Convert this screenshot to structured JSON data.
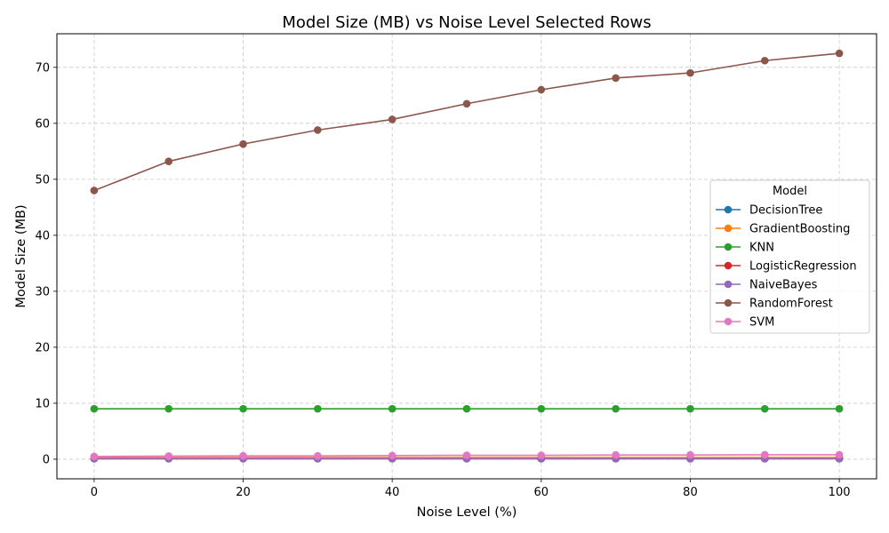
{
  "chart_data": {
    "type": "line",
    "title": "Model Size (MB) vs Noise Level Selected Rows",
    "xlabel": "Noise Level (%)",
    "ylabel": "Model Size (MB)",
    "xlim": [
      -5,
      105
    ],
    "ylim": [
      -3.5,
      76
    ],
    "xticks": [
      0,
      20,
      40,
      60,
      80,
      100
    ],
    "yticks": [
      0,
      10,
      20,
      30,
      40,
      50,
      60,
      70
    ],
    "grid": true,
    "legend_title": "Model",
    "legend_position": "center-right",
    "x": [
      0,
      10,
      20,
      30,
      40,
      50,
      60,
      70,
      80,
      90,
      100
    ],
    "series": [
      {
        "name": "DecisionTree",
        "color": "#1f77b4",
        "values": [
          0.1,
          0.1,
          0.1,
          0.1,
          0.1,
          0.1,
          0.1,
          0.1,
          0.1,
          0.1,
          0.1
        ]
      },
      {
        "name": "GradientBoosting",
        "color": "#ff7f0e",
        "values": [
          0.3,
          0.3,
          0.3,
          0.3,
          0.3,
          0.3,
          0.3,
          0.3,
          0.3,
          0.3,
          0.3
        ]
      },
      {
        "name": "KNN",
        "color": "#2ca02c",
        "values": [
          9.0,
          9.0,
          9.0,
          9.0,
          9.0,
          9.0,
          9.0,
          9.0,
          9.0,
          9.0,
          9.0
        ]
      },
      {
        "name": "LogisticRegression",
        "color": "#d62728",
        "values": [
          0.1,
          0.1,
          0.1,
          0.1,
          0.1,
          0.1,
          0.1,
          0.1,
          0.1,
          0.1,
          0.1
        ]
      },
      {
        "name": "NaiveBayes",
        "color": "#9467bd",
        "values": [
          0.1,
          0.1,
          0.1,
          0.1,
          0.1,
          0.1,
          0.1,
          0.1,
          0.1,
          0.1,
          0.1
        ]
      },
      {
        "name": "RandomForest",
        "color": "#8c564b",
        "values": [
          48.0,
          53.2,
          56.3,
          58.8,
          60.7,
          63.5,
          66.0,
          68.1,
          69.0,
          71.2,
          72.5
        ]
      },
      {
        "name": "SVM",
        "color": "#e377c2",
        "values": [
          0.5,
          0.55,
          0.6,
          0.6,
          0.65,
          0.7,
          0.7,
          0.75,
          0.75,
          0.8,
          0.8
        ]
      }
    ]
  }
}
